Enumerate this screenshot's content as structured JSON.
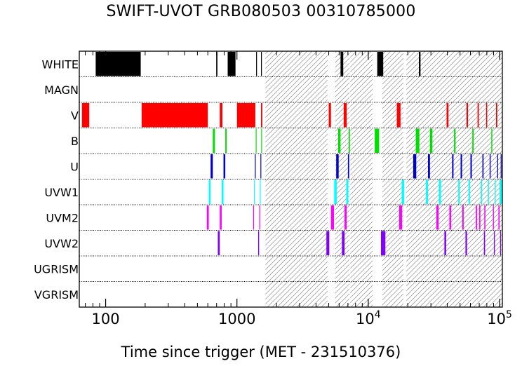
{
  "chart_data": {
    "type": "timeline",
    "title": "SWIFT-UVOT GRB080503 00310785000",
    "xlabel": "Time since trigger (MET - 231510376)",
    "xscale": "log",
    "xlim": [
      63,
      105000
    ],
    "xticks": [
      {
        "value": 100,
        "label": "100"
      },
      {
        "value": 1000,
        "label": "1000"
      },
      {
        "value": 10000,
        "label": "10",
        "exp": "4"
      },
      {
        "value": 100000,
        "label": "10",
        "exp": "5"
      }
    ],
    "filters": [
      "WHITE",
      "MAGN",
      "V",
      "B",
      "U",
      "UVW1",
      "UVM2",
      "UVW2",
      "UGRISM",
      "VGRISM"
    ],
    "colors": {
      "WHITE": "#000000",
      "MAGN": "#000000",
      "V": "#ff0000",
      "B": "#00e000",
      "U": "#0000d0",
      "UVW1": "#00ffff",
      "UVM2": "#ff00ff",
      "UVW2": "#8000ff",
      "UGRISM": "#000000",
      "VGRISM": "#000000"
    },
    "hatched_intervals": [
      [
        1650,
        4900
      ],
      [
        5600,
        7200
      ],
      [
        7300,
        10800
      ],
      [
        12800,
        18500
      ],
      [
        19500,
        105000
      ]
    ],
    "exposures": {
      "WHITE": [
        [
          84,
          185
        ],
        [
          695,
          710
        ],
        [
          850,
          975
        ],
        [
          1400,
          1420
        ],
        [
          1525,
          1545
        ],
        [
          6150,
          6450
        ],
        [
          11700,
          13000
        ],
        [
          24300,
          25000
        ]
      ],
      "MAGN": [],
      "V": [
        [
          66,
          75
        ],
        [
          188,
          600
        ],
        [
          740,
          775
        ],
        [
          1000,
          1380
        ],
        [
          1525,
          1560
        ],
        [
          5000,
          5200
        ],
        [
          6500,
          6850
        ],
        [
          16500,
          17600
        ],
        [
          39500,
          40800
        ],
        [
          56000,
          57500
        ],
        [
          68000,
          69500
        ],
        [
          79000,
          80500
        ],
        [
          94000,
          96000
        ]
      ],
      "B": [
        [
          655,
          680
        ],
        [
          815,
          835
        ],
        [
          1390,
          1410
        ],
        [
          1530,
          1550
        ],
        [
          5900,
          6150
        ],
        [
          7100,
          7250
        ],
        [
          11200,
          12100
        ],
        [
          23000,
          24500
        ],
        [
          29500,
          30800
        ],
        [
          45000,
          46200
        ],
        [
          62000,
          63500
        ],
        [
          86500,
          88000
        ]
      ],
      "U": [
        [
          630,
          655
        ],
        [
          790,
          815
        ],
        [
          1370,
          1390
        ],
        [
          1510,
          1530
        ],
        [
          5700,
          5950
        ],
        [
          7000,
          7150
        ],
        [
          22000,
          23200
        ],
        [
          28500,
          29500
        ],
        [
          43500,
          44600
        ],
        [
          50500,
          51800
        ],
        [
          60000,
          61500
        ],
        [
          74000,
          75500
        ],
        [
          84000,
          85500
        ],
        [
          96000,
          97500
        ],
        [
          102000,
          103500
        ]
      ],
      "UVW1": [
        [
          610,
          630
        ],
        [
          765,
          790
        ],
        [
          1350,
          1370
        ],
        [
          1495,
          1515
        ],
        [
          5500,
          5750
        ],
        [
          6800,
          7050
        ],
        [
          18000,
          18800
        ],
        [
          27500,
          28500
        ],
        [
          34500,
          35800
        ],
        [
          48500,
          49800
        ],
        [
          58000,
          59500
        ],
        [
          72000,
          73500
        ],
        [
          81500,
          83000
        ],
        [
          92000,
          93500
        ],
        [
          100000,
          104000
        ]
      ],
      "UVM2": [
        [
          590,
          610
        ],
        [
          740,
          765
        ],
        [
          1330,
          1350
        ],
        [
          1480,
          1500
        ],
        [
          5200,
          5480
        ],
        [
          6600,
          6850
        ],
        [
          17200,
          18100
        ],
        [
          33000,
          34300
        ],
        [
          41500,
          42800
        ],
        [
          52000,
          53300
        ],
        [
          66000,
          67500
        ],
        [
          70000,
          71400
        ],
        [
          76500,
          78000
        ],
        [
          89000,
          90500
        ],
        [
          98000,
          100000
        ]
      ],
      "UVW2": [
        [
          715,
          740
        ],
        [
          1450,
          1475
        ],
        [
          4800,
          5050
        ],
        [
          6300,
          6600
        ],
        [
          12500,
          13500
        ],
        [
          38000,
          39200
        ],
        [
          55000,
          56500
        ],
        [
          76000,
          77500
        ],
        [
          90500,
          92000
        ],
        [
          101000,
          102500
        ]
      ],
      "UGRISM": [],
      "VGRISM": []
    }
  }
}
